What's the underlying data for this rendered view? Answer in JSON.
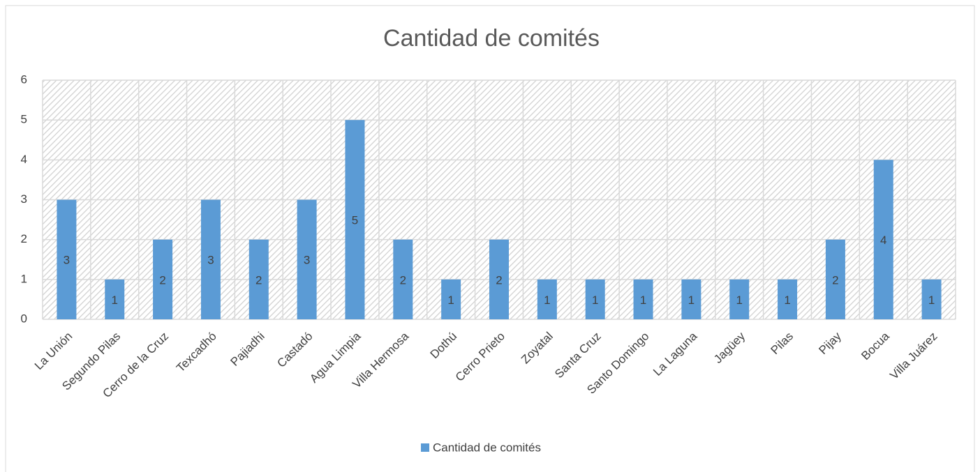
{
  "chart_data": {
    "type": "bar",
    "title": "Cantidad de comités",
    "categories": [
      "La Unión",
      "Segundo Pilas",
      "Cerro de la Cruz",
      "Texcadhó",
      "Pajiadhi",
      "Castadó",
      "Agua Limpia",
      "Villa Hermosa",
      "Dothú",
      "Cerro Prieto",
      "Zoyatal",
      "Santa Cruz",
      "Santo Domingo",
      "La Laguna",
      "Jagüey",
      "Pilas",
      "Pijay",
      "Bocua",
      "Villa Juárez"
    ],
    "series": [
      {
        "name": "Cantidad de comités",
        "color": "#5b9bd5",
        "values": [
          3,
          1,
          2,
          3,
          2,
          3,
          5,
          2,
          1,
          2,
          1,
          1,
          1,
          1,
          1,
          1,
          2,
          4,
          1
        ]
      }
    ],
    "ylim": [
      0,
      6
    ],
    "yticks": [
      0,
      1,
      2,
      3,
      4,
      5,
      6
    ],
    "grid": true,
    "legend": "bottom"
  }
}
